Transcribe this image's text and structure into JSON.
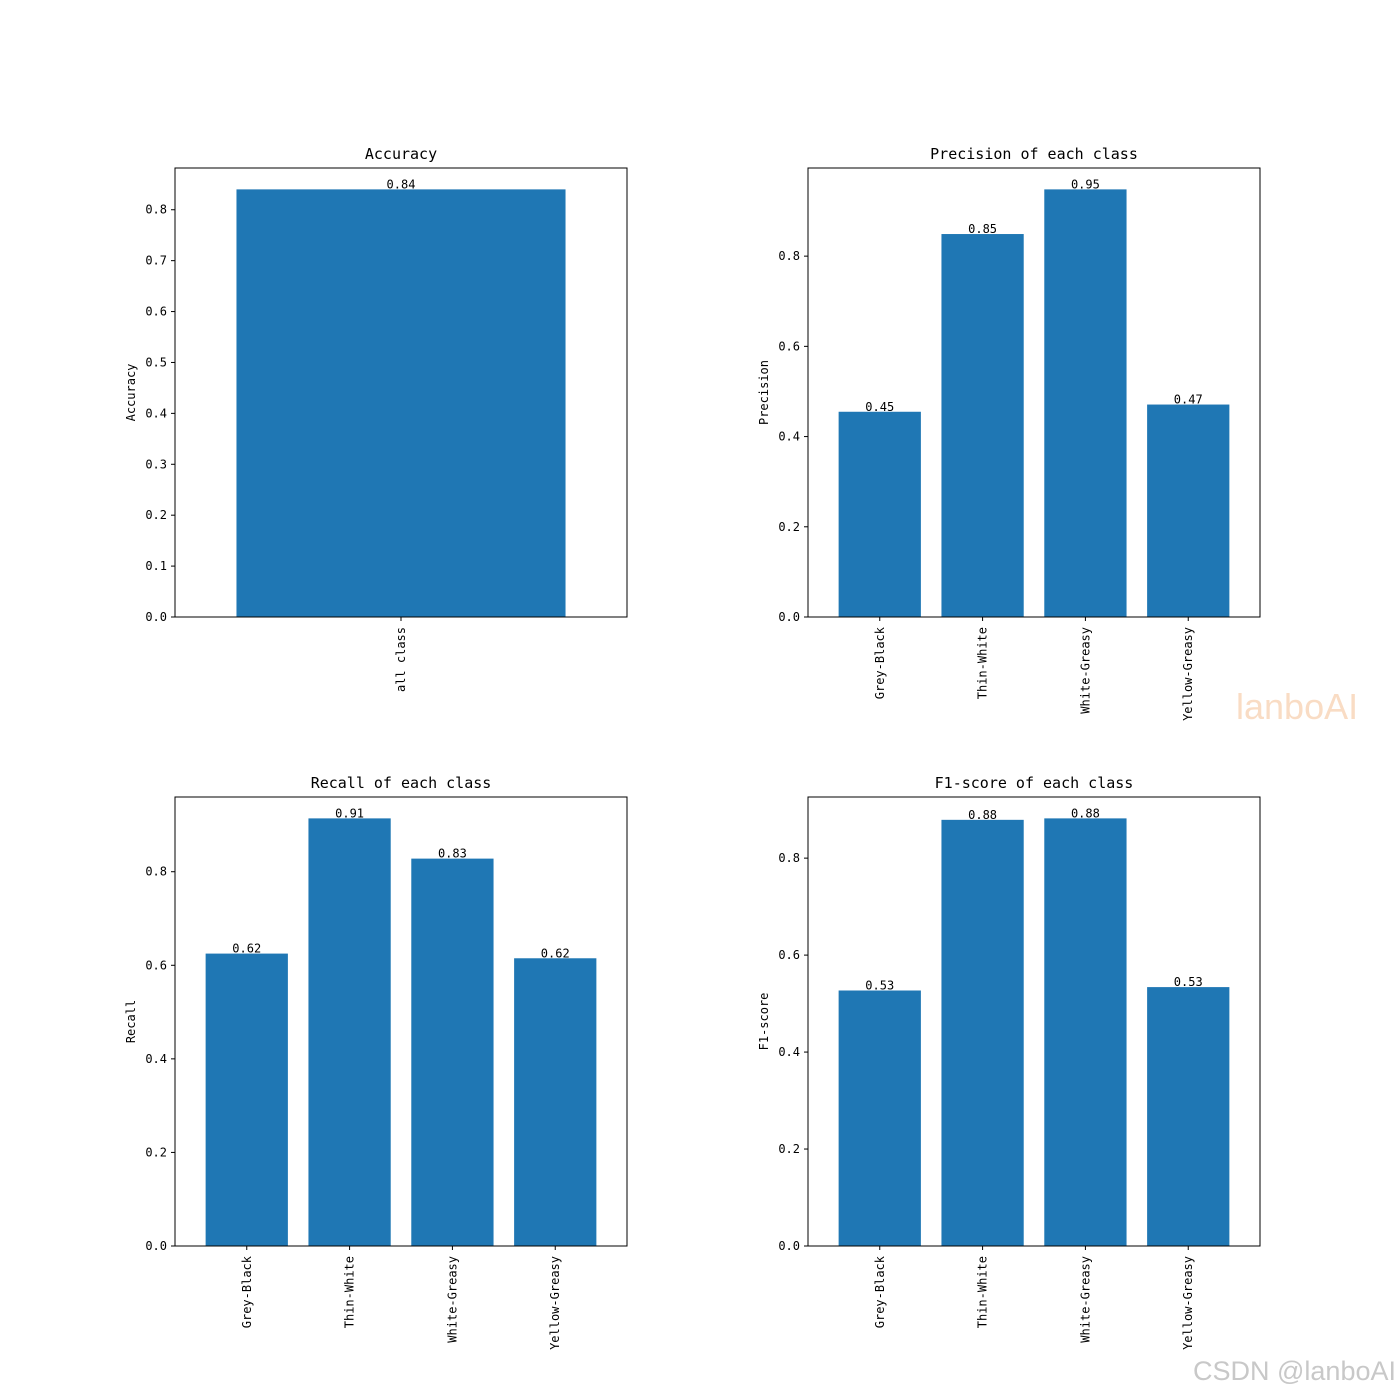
{
  "palette": {
    "bar": "#1f77b4",
    "frame": "#000000"
  },
  "watermarks": {
    "mid": "lanboAI",
    "bottom": "CSDN @lanboAI"
  },
  "chart_data": [
    {
      "type": "bar",
      "title": "Accuracy",
      "ylabel": "Accuracy",
      "xlabel": "",
      "categories": [
        "all class"
      ],
      "values": [
        0.84
      ],
      "value_labels": [
        "0.84"
      ],
      "ylim": [
        0,
        0.882
      ],
      "yticks": [
        0.0,
        0.1,
        0.2,
        0.3,
        0.4,
        0.5,
        0.6,
        0.7,
        0.8
      ],
      "ytick_labels": [
        "0.0",
        "0.1",
        "0.2",
        "0.3",
        "0.4",
        "0.5",
        "0.6",
        "0.7",
        "0.8"
      ],
      "grid": false,
      "legend": "none"
    },
    {
      "type": "bar",
      "title": "Precision of each class",
      "ylabel": "Precision",
      "xlabel": "",
      "categories": [
        "Grey-Black",
        "Thin-White",
        "White-Greasy",
        "Yellow-Greasy"
      ],
      "values": [
        0.455,
        0.849,
        0.948,
        0.471
      ],
      "value_labels": [
        "0.45",
        "0.85",
        "0.95",
        "0.47"
      ],
      "ylim": [
        0,
        0.9954
      ],
      "yticks": [
        0.0,
        0.2,
        0.4,
        0.6,
        0.8
      ],
      "ytick_labels": [
        "0.0",
        "0.2",
        "0.4",
        "0.6",
        "0.8"
      ],
      "grid": false,
      "legend": "none"
    },
    {
      "type": "bar",
      "title": "Recall of each class",
      "ylabel": "Recall",
      "xlabel": "",
      "categories": [
        "Grey-Black",
        "Thin-White",
        "White-Greasy",
        "Yellow-Greasy"
      ],
      "values": [
        0.625,
        0.914,
        0.828,
        0.615
      ],
      "value_labels": [
        "0.62",
        "0.91",
        "0.83",
        "0.62"
      ],
      "ylim": [
        0,
        0.9597
      ],
      "yticks": [
        0.0,
        0.2,
        0.4,
        0.6,
        0.8
      ],
      "ytick_labels": [
        "0.0",
        "0.2",
        "0.4",
        "0.6",
        "0.8"
      ],
      "grid": false,
      "legend": "none"
    },
    {
      "type": "bar",
      "title": "F1-score of each class",
      "ylabel": "F1-score",
      "xlabel": "",
      "categories": [
        "Grey-Black",
        "Thin-White",
        "White-Greasy",
        "Yellow-Greasy"
      ],
      "values": [
        0.527,
        0.879,
        0.882,
        0.534
      ],
      "value_labels": [
        "0.53",
        "0.88",
        "0.88",
        "0.53"
      ],
      "ylim": [
        0,
        0.9261
      ],
      "yticks": [
        0.0,
        0.2,
        0.4,
        0.6,
        0.8
      ],
      "ytick_labels": [
        "0.0",
        "0.2",
        "0.4",
        "0.6",
        "0.8"
      ],
      "grid": false,
      "legend": "none"
    }
  ]
}
